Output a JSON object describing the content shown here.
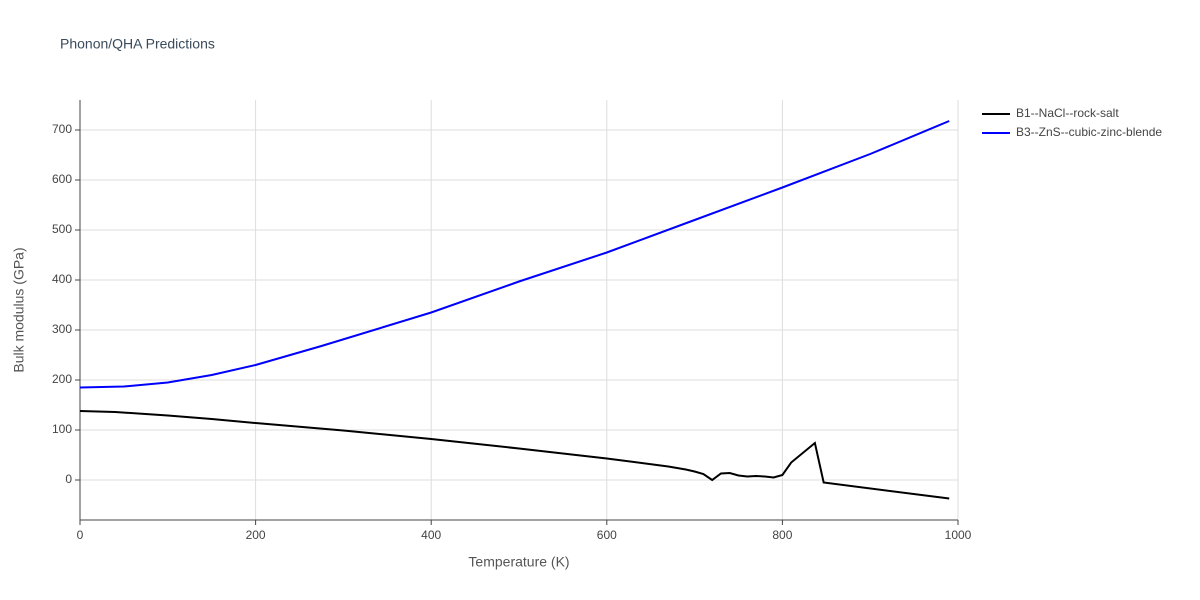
{
  "chart_data": {
    "type": "line",
    "title": "Phonon/QHA Predictions",
    "x_label": "Temperature (K)",
    "y_label": "Bulk modulus (GPa)",
    "xlim": [
      0,
      1000
    ],
    "xticks": [
      0,
      200,
      400,
      600,
      800,
      1000
    ],
    "ylim": [
      -80,
      760
    ],
    "yticks": [
      0,
      100,
      200,
      300,
      400,
      500,
      600,
      700
    ],
    "grid": true,
    "legend": "outside-right",
    "series": [
      {
        "name": "B1--NaCl--rock-salt",
        "color": "#000000",
        "x": [
          0,
          40,
          100,
          150,
          200,
          300,
          400,
          500,
          600,
          670,
          690,
          700,
          710,
          720,
          730,
          740,
          750,
          760,
          770,
          780,
          790,
          800,
          810,
          837,
          847,
          990
        ],
        "values": [
          138,
          136,
          129,
          122,
          114,
          99,
          82,
          63,
          43,
          27,
          21,
          17,
          12,
          0,
          13,
          14,
          9,
          7,
          8,
          7,
          5,
          10,
          35,
          74,
          -5,
          -37
        ]
      },
      {
        "name": "B3--ZnS--cubic-zinc-blende",
        "color": "#0000ff",
        "x": [
          0,
          50,
          100,
          150,
          200,
          275,
          400,
          500,
          600,
          700,
          800,
          900,
          990
        ],
        "values": [
          185,
          187,
          195,
          210,
          230,
          268,
          335,
          397,
          455,
          520,
          585,
          652,
          718
        ]
      }
    ]
  }
}
